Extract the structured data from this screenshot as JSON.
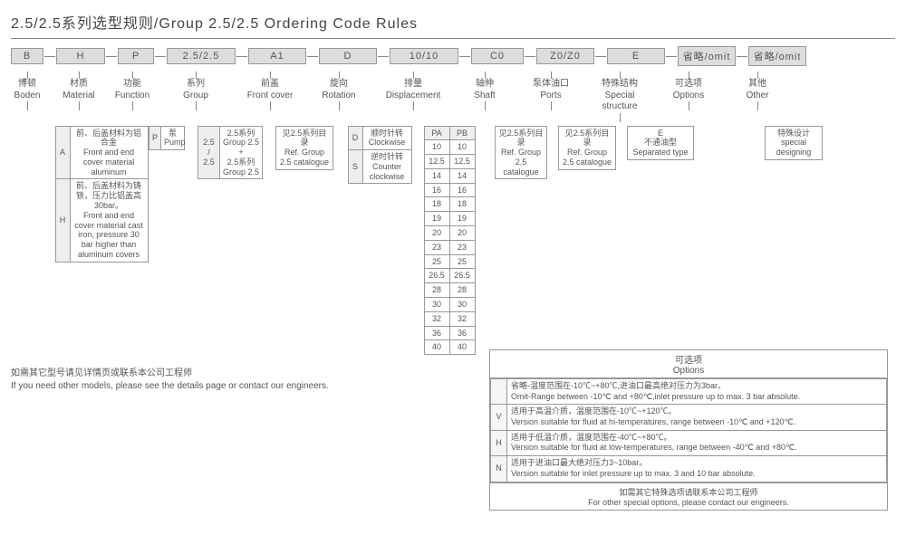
{
  "title": "2.5/2.5系列选型规则/Group 2.5/2.5 Ordering Code Rules",
  "segments": [
    {
      "code": "B",
      "w": 36,
      "cn": "博顿",
      "en": "Boden"
    },
    {
      "code": "H",
      "w": 54,
      "cn": "材质",
      "en": "Material"
    },
    {
      "code": "P",
      "w": 40,
      "cn": "功能",
      "en": "Function"
    },
    {
      "code": "2.5/2.5",
      "w": 76,
      "cn": "系列",
      "en": "Group"
    },
    {
      "code": "A1",
      "w": 64,
      "cn": "前盖",
      "en": "Front cover"
    },
    {
      "code": "D",
      "w": 64,
      "cn": "旋向",
      "en": "Rotation"
    },
    {
      "code": "10/10",
      "w": 76,
      "cn": "排量",
      "en": "Displacement"
    },
    {
      "code": "C0",
      "w": 58,
      "cn": "轴伸",
      "en": "Shaft"
    },
    {
      "code": "Z0/Z0",
      "w": 64,
      "cn": "泵体油口",
      "en": "Ports"
    },
    {
      "code": "E",
      "w": 64,
      "cn": "特殊结构",
      "en": "Special structure"
    },
    {
      "code": "省略/omit",
      "w": 64,
      "cn": "可选项",
      "en": "Options"
    },
    {
      "code": "省略/omit",
      "w": 64,
      "cn": "其他",
      "en": "Other"
    }
  ],
  "material": [
    {
      "k": "A",
      "cn": "前、后盖材料为铝合金",
      "en": "Front and end cover material aluminum"
    },
    {
      "k": "H",
      "cn": "前、后盖材料为铸铁，压力比铝盖高 30bar。",
      "en": "Front and end cover material cast iron, pressure 30 bar higher than aluminum covers"
    }
  ],
  "function": [
    {
      "k": "P",
      "cn": "泵",
      "en": "Pump"
    }
  ],
  "group": [
    {
      "k": "2.5/2.5",
      "cn": "2.5系列 Group 2.5 + 2.5系列 Group 2.5",
      "en": ""
    }
  ],
  "frontcover": {
    "cn": "见2.5系列目录",
    "en": "Ref. Group 2.5 catalogue"
  },
  "rotation": [
    {
      "k": "D",
      "cn": "顺时针转",
      "en": "Clockwise"
    },
    {
      "k": "S",
      "cn": "逆时针转",
      "en": "Counter clockwise"
    }
  ],
  "displacement": {
    "headers": [
      "PA",
      "PB"
    ],
    "rows": [
      [
        "10",
        "10"
      ],
      [
        "12.5",
        "12.5"
      ],
      [
        "14",
        "14"
      ],
      [
        "16",
        "16"
      ],
      [
        "18",
        "18"
      ],
      [
        "19",
        "19"
      ],
      [
        "20",
        "20"
      ],
      [
        "23",
        "23"
      ],
      [
        "25",
        "25"
      ],
      [
        "26.5",
        "26.5"
      ],
      [
        "28",
        "28"
      ],
      [
        "30",
        "30"
      ],
      [
        "32",
        "32"
      ],
      [
        "36",
        "36"
      ],
      [
        "40",
        "40"
      ]
    ]
  },
  "shaft": {
    "cn": "见2.5系列目录",
    "en": "Ref. Group 2.5 catalogue"
  },
  "ports": {
    "cn": "见2.5系列目录",
    "en": "Ref. Group 2.5 catalogue"
  },
  "special": {
    "k": "E",
    "cn": "不通油型",
    "en": "Separated type"
  },
  "other": {
    "cn": "特殊设计",
    "en": "special designing"
  },
  "optionsBox": {
    "hdr_cn": "可选项",
    "hdr_en": "Options",
    "rows": [
      {
        "k": "",
        "cn": "省略-温度范围在-10℃~+80℃,进油口最高绝对压力为3bar。",
        "en": "Omit-Range between -10℃ and +80℃,inlet pressure up to max. 3 bar absolute."
      },
      {
        "k": "V",
        "cn": "适用于高温介质，温度范围在-10℃~+120℃。",
        "en": "Version suitable for fluid at hi-temperatures, range between -10℃ and +120℃."
      },
      {
        "k": "H",
        "cn": "适用于低温介质，温度范围在-40℃~+80℃。",
        "en": "Version suitable for fluid at low-temperatures, range between -40℃ and +80℃."
      },
      {
        "k": "N",
        "cn": "适用于进油口最大绝对压力3~10bar。",
        "en": "Version suitable for inlet pressure up to max. 3 and 10 bar absolute."
      }
    ],
    "ftr_cn": "如需其它特殊选项请联系本公司工程师",
    "ftr_en": "For other special options, please contact our engineers."
  },
  "footnote": {
    "cn": "如需其它型号请见详情页或联系本公司工程师",
    "en": "If you need other models, please see the details page or contact our engineers."
  }
}
